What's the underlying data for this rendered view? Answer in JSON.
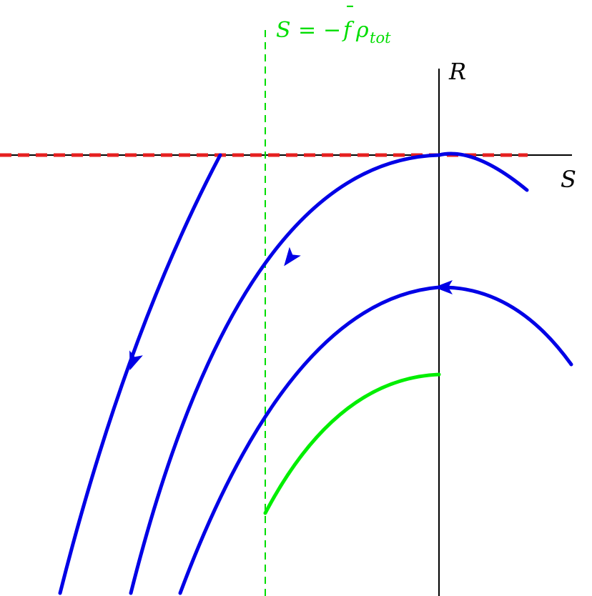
{
  "axes": {
    "vertical_label": "R",
    "horizontal_label": "S"
  },
  "asymptote": {
    "lhs": "S",
    "eq": "=",
    "minus": "−",
    "f": "f",
    "bar": "¯",
    "rho": "ρ",
    "sub": "tot"
  },
  "colors": {
    "axis": "#000000",
    "trajectory": "#0000e6",
    "separatrix": "#00ee00",
    "asymptote": "#00dd00",
    "horizontal_dashed": "#e62020"
  }
}
